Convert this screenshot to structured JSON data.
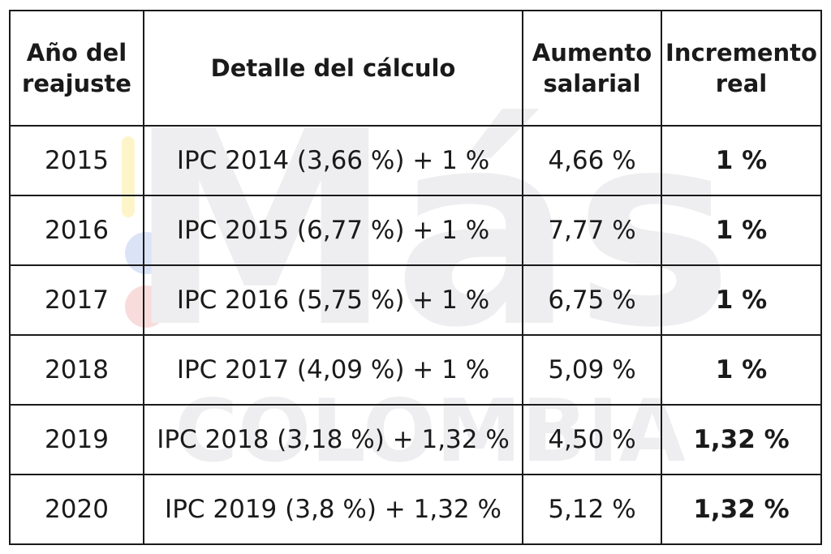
{
  "table": {
    "headers": [
      [
        "Año del",
        "reajuste"
      ],
      [
        "Detalle del cálculo"
      ],
      [
        "Aumento",
        "salarial"
      ],
      [
        "Incremento",
        "real"
      ]
    ],
    "rows": [
      [
        "2015",
        "IPC 2014 (3,66 %) + 1 %",
        "4,66 %",
        "1 %"
      ],
      [
        "2016",
        "IPC 2015 (6,77 %) + 1 %",
        "7,77 %",
        "1 %"
      ],
      [
        "2017",
        "IPC 2016 (5,75 %) + 1 %",
        "6,75 %",
        "1 %"
      ],
      [
        "2018",
        "IPC 2017 (4,09 %) + 1 %",
        "5,09 %",
        "1 %"
      ],
      [
        "2019",
        "IPC 2018 (3,18 %) + 1,32 %",
        "4,50 %",
        "1,32 %"
      ],
      [
        "2020",
        "IPC 2019 (3,8 %) + 1,32 %",
        "5,12 %",
        "1,32 %"
      ]
    ]
  },
  "watermark": {
    "brand_top": "Más",
    "brand_bottom": "COLOMBIA",
    "colors": {
      "yellow": "#fdf5c9",
      "blue": "#dbe4f7",
      "red": "#f8dcdc",
      "gray": "#eeeef0"
    }
  }
}
